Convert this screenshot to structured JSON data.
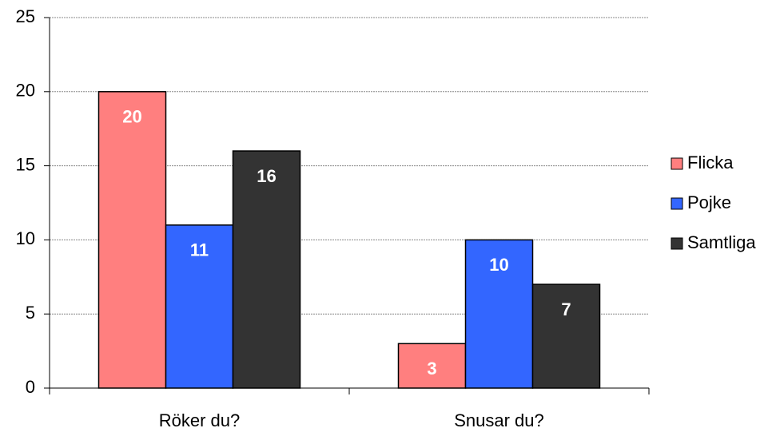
{
  "chart_data": {
    "type": "bar",
    "categories": [
      "Röker du?",
      "Snusar du?"
    ],
    "series": [
      {
        "name": "Flicka",
        "color": "#ff7f7f",
        "values": [
          20,
          3
        ]
      },
      {
        "name": "Pojke",
        "color": "#3366ff",
        "values": [
          11,
          10
        ]
      },
      {
        "name": "Samtliga",
        "color": "#333333",
        "values": [
          16,
          7
        ]
      }
    ],
    "ylim": [
      0,
      25
    ],
    "yticks": [
      0,
      5,
      10,
      15,
      20,
      25
    ],
    "grid": true,
    "legend": "right"
  }
}
